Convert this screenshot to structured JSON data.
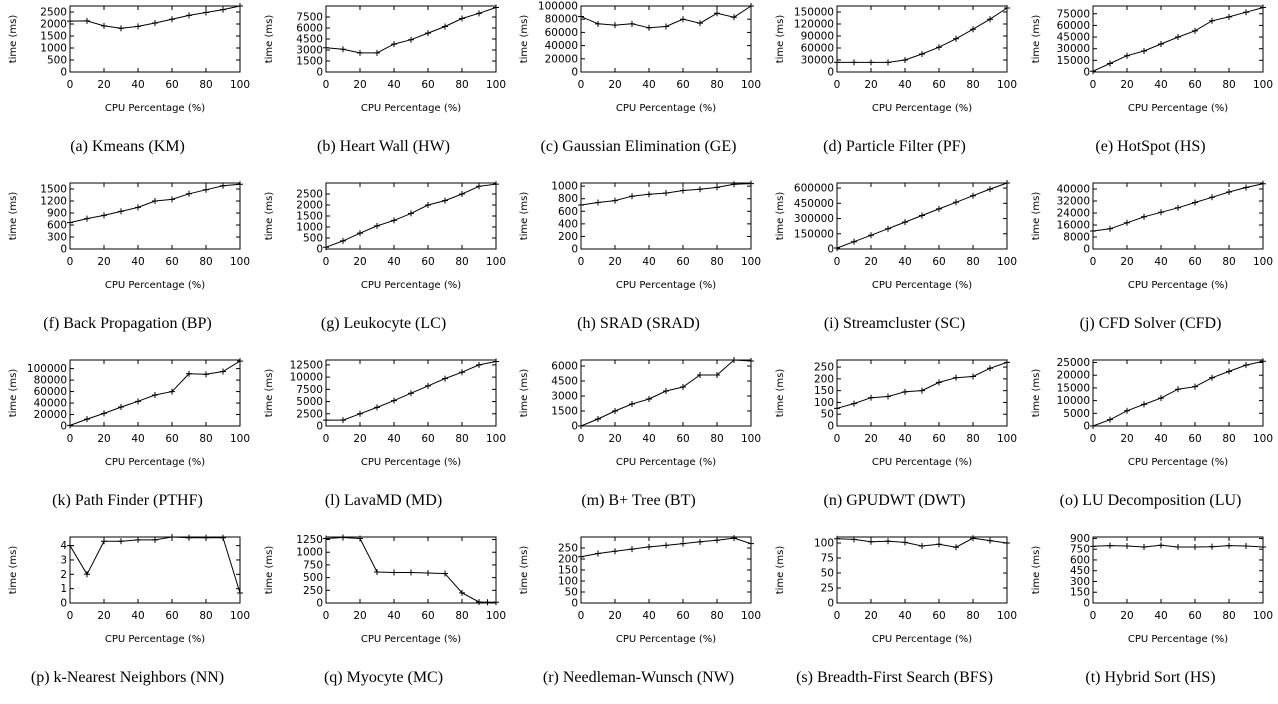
{
  "chart_data": [
    {
      "type": "line",
      "caption": "(a) Kmeans (KM)",
      "xlabel": "CPU Percentage (%)",
      "ylabel": "time (ms)",
      "xlim": [
        0,
        100
      ],
      "ylim": [
        0,
        2750
      ],
      "xticks": [
        0,
        20,
        40,
        60,
        80,
        100
      ],
      "yticks": [
        0,
        500,
        1000,
        1500,
        2000,
        2500
      ],
      "x": [
        0,
        10,
        20,
        30,
        40,
        50,
        60,
        70,
        80,
        90,
        100
      ],
      "values": [
        2120,
        2130,
        1920,
        1820,
        1900,
        2040,
        2200,
        2360,
        2480,
        2600,
        2750
      ]
    },
    {
      "type": "line",
      "caption": "(b) Heart Wall (HW)",
      "xlabel": "CPU Percentage (%)",
      "ylabel": "time (ms)",
      "xlim": [
        0,
        100
      ],
      "ylim": [
        0,
        9000
      ],
      "xticks": [
        0,
        20,
        40,
        60,
        80,
        100
      ],
      "yticks": [
        0,
        1500,
        3000,
        4500,
        6000,
        7500
      ],
      "x": [
        0,
        10,
        20,
        30,
        40,
        50,
        60,
        70,
        80,
        90,
        100
      ],
      "values": [
        3300,
        3100,
        2600,
        2600,
        3800,
        4400,
        5300,
        6200,
        7300,
        8000,
        8800
      ]
    },
    {
      "type": "line",
      "caption": "(c) Gaussian Elimination (GE)",
      "xlabel": "CPU Percentage (%)",
      "ylabel": "time (ms)",
      "xlim": [
        0,
        100
      ],
      "ylim": [
        0,
        100000
      ],
      "xticks": [
        0,
        20,
        40,
        60,
        80,
        100
      ],
      "yticks": [
        0,
        20000,
        40000,
        60000,
        80000,
        100000
      ],
      "x": [
        0,
        10,
        20,
        30,
        40,
        50,
        60,
        70,
        80,
        90,
        100
      ],
      "values": [
        84000,
        73000,
        71000,
        73000,
        67000,
        69000,
        80000,
        74000,
        89000,
        83000,
        100000
      ]
    },
    {
      "type": "line",
      "caption": "(d) Particle Filter (PF)",
      "xlabel": "CPU Percentage (%)",
      "ylabel": "time (ms)",
      "xlim": [
        0,
        100
      ],
      "ylim": [
        0,
        165000
      ],
      "xticks": [
        0,
        20,
        40,
        60,
        80,
        100
      ],
      "yticks": [
        0,
        30000,
        60000,
        90000,
        120000,
        150000
      ],
      "x": [
        0,
        10,
        20,
        30,
        40,
        50,
        60,
        70,
        80,
        90,
        100
      ],
      "values": [
        24000,
        24000,
        24000,
        24000,
        30000,
        45000,
        62000,
        83000,
        107000,
        132000,
        160000
      ]
    },
    {
      "type": "line",
      "caption": "(e) HotSpot (HS)",
      "xlabel": "CPU Percentage (%)",
      "ylabel": "time (ms)",
      "xlim": [
        0,
        100
      ],
      "ylim": [
        0,
        85000
      ],
      "xticks": [
        0,
        20,
        40,
        60,
        80,
        100
      ],
      "yticks": [
        0,
        15000,
        30000,
        45000,
        60000,
        75000
      ],
      "x": [
        0,
        10,
        20,
        30,
        40,
        50,
        60,
        70,
        80,
        90,
        100
      ],
      "values": [
        1000,
        11000,
        21000,
        27000,
        36000,
        45000,
        53000,
        66000,
        71000,
        77000,
        83000
      ]
    },
    {
      "type": "line",
      "caption": "(f) Back Propagation (BP)",
      "xlabel": "CPU Percentage (%)",
      "ylabel": "time (ms)",
      "xlim": [
        0,
        100
      ],
      "ylim": [
        0,
        1650
      ],
      "xticks": [
        0,
        20,
        40,
        60,
        80,
        100
      ],
      "yticks": [
        0,
        300,
        600,
        900,
        1200,
        1500
      ],
      "x": [
        0,
        10,
        20,
        30,
        40,
        50,
        60,
        70,
        80,
        90,
        100
      ],
      "values": [
        660,
        760,
        840,
        940,
        1040,
        1200,
        1240,
        1380,
        1480,
        1580,
        1620
      ]
    },
    {
      "type": "line",
      "caption": "(g) Leukocyte (LC)",
      "xlabel": "CPU Percentage (%)",
      "ylabel": "time (ms)",
      "xlim": [
        0,
        100
      ],
      "ylim": [
        0,
        3000
      ],
      "xticks": [
        0,
        20,
        40,
        60,
        80,
        100
      ],
      "yticks": [
        0,
        500,
        1000,
        1500,
        2000,
        2500
      ],
      "x": [
        0,
        10,
        20,
        30,
        40,
        50,
        60,
        70,
        80,
        90,
        100
      ],
      "values": [
        80,
        370,
        720,
        1050,
        1300,
        1620,
        2000,
        2200,
        2500,
        2850,
        2950
      ]
    },
    {
      "type": "line",
      "caption": "(h) SRAD (SRAD)",
      "xlabel": "CPU Percentage (%)",
      "ylabel": "time (ms)",
      "xlim": [
        0,
        100
      ],
      "ylim": [
        0,
        1050
      ],
      "xticks": [
        0,
        20,
        40,
        60,
        80,
        100
      ],
      "yticks": [
        0,
        200,
        400,
        600,
        800,
        1000
      ],
      "x": [
        0,
        10,
        20,
        30,
        40,
        50,
        60,
        70,
        80,
        90,
        100
      ],
      "values": [
        700,
        740,
        770,
        840,
        870,
        890,
        930,
        950,
        980,
        1030,
        1040
      ]
    },
    {
      "type": "line",
      "caption": "(i) Streamcluster (SC)",
      "xlabel": "CPU Percentage (%)",
      "ylabel": "time (ms)",
      "xlim": [
        0,
        100
      ],
      "ylim": [
        0,
        650000
      ],
      "xticks": [
        0,
        20,
        40,
        60,
        80,
        100
      ],
      "yticks": [
        0,
        150000,
        300000,
        450000,
        600000
      ],
      "x": [
        0,
        10,
        20,
        30,
        40,
        50,
        60,
        70,
        80,
        90,
        100
      ],
      "values": [
        10000,
        72000,
        135000,
        200000,
        265000,
        330000,
        395000,
        460000,
        525000,
        590000,
        650000
      ]
    },
    {
      "type": "line",
      "caption": "(j) CFD Solver (CFD)",
      "xlabel": "CPU Percentage (%)",
      "ylabel": "time (ms)",
      "xlim": [
        0,
        100
      ],
      "ylim": [
        0,
        44000
      ],
      "xticks": [
        0,
        20,
        40,
        60,
        80,
        100
      ],
      "yticks": [
        0,
        8000,
        16000,
        24000,
        32000,
        40000
      ],
      "x": [
        0,
        10,
        20,
        30,
        40,
        50,
        60,
        70,
        80,
        90,
        100
      ],
      "values": [
        12000,
        13500,
        17500,
        21500,
        24500,
        27500,
        31000,
        34500,
        38000,
        41000,
        43500
      ]
    },
    {
      "type": "line",
      "caption": "(k) Path Finder (PTHF)",
      "xlabel": "CPU Percentage (%)",
      "ylabel": "time (ms)",
      "xlim": [
        0,
        100
      ],
      "ylim": [
        0,
        115000
      ],
      "xticks": [
        0,
        20,
        40,
        60,
        80,
        100
      ],
      "yticks": [
        0,
        20000,
        40000,
        60000,
        80000,
        100000
      ],
      "x": [
        0,
        10,
        20,
        30,
        40,
        50,
        60,
        70,
        80,
        90,
        100
      ],
      "values": [
        1000,
        12000,
        22000,
        33000,
        43000,
        54000,
        60000,
        91000,
        90000,
        95000,
        113000
      ]
    },
    {
      "type": "line",
      "caption": "(l) LavaMD (MD)",
      "xlabel": "CPU Percentage (%)",
      "ylabel": "time (ms)",
      "xlim": [
        0,
        100
      ],
      "ylim": [
        0,
        13500
      ],
      "xticks": [
        0,
        20,
        40,
        60,
        80,
        100
      ],
      "yticks": [
        0,
        2500,
        5000,
        7500,
        10000,
        12500
      ],
      "x": [
        0,
        10,
        20,
        30,
        40,
        50,
        60,
        70,
        80,
        90,
        100
      ],
      "values": [
        1200,
        1200,
        2500,
        3800,
        5200,
        6700,
        8200,
        9700,
        11000,
        12500,
        13200
      ]
    },
    {
      "type": "line",
      "caption": "(m) B+ Tree (BT)",
      "xlabel": "CPU Percentage (%)",
      "ylabel": "time (ms)",
      "xlim": [
        0,
        100
      ],
      "ylim": [
        0,
        6600
      ],
      "xticks": [
        0,
        20,
        40,
        60,
        80,
        100
      ],
      "yticks": [
        0,
        1500,
        3000,
        4500,
        6000
      ],
      "x": [
        0,
        10,
        20,
        30,
        40,
        50,
        60,
        70,
        80,
        90,
        100
      ],
      "values": [
        0,
        700,
        1500,
        2200,
        2700,
        3500,
        3900,
        5100,
        5100,
        6600,
        6500
      ]
    },
    {
      "type": "line",
      "caption": "(n) GPUDWT (DWT)",
      "xlabel": "CPU Percentage (%)",
      "ylabel": "time (ms)",
      "xlim": [
        0,
        100
      ],
      "ylim": [
        0,
        280
      ],
      "xticks": [
        0,
        20,
        40,
        60,
        80,
        100
      ],
      "yticks": [
        0,
        50,
        100,
        150,
        200,
        250
      ],
      "x": [
        0,
        10,
        20,
        30,
        40,
        50,
        60,
        70,
        80,
        90,
        100
      ],
      "values": [
        75,
        95,
        120,
        125,
        145,
        150,
        185,
        205,
        210,
        245,
        270
      ]
    },
    {
      "type": "line",
      "caption": "(o) LU Decomposition (LU)",
      "xlabel": "CPU Percentage (%)",
      "ylabel": "time (ms)",
      "xlim": [
        0,
        100
      ],
      "ylim": [
        0,
        26000
      ],
      "xticks": [
        0,
        20,
        40,
        60,
        80,
        100
      ],
      "yticks": [
        0,
        5000,
        10000,
        15000,
        20000,
        25000
      ],
      "x": [
        0,
        10,
        20,
        30,
        40,
        50,
        60,
        70,
        80,
        90,
        100
      ],
      "values": [
        0,
        2500,
        6000,
        8500,
        11000,
        14500,
        15500,
        19000,
        21500,
        24000,
        25500
      ]
    },
    {
      "type": "line",
      "caption": "(p) k-Nearest Neighbors (NN)",
      "xlabel": "CPU Percentage (%)",
      "ylabel": "time (ms)",
      "xlim": [
        0,
        100
      ],
      "ylim": [
        0,
        4.6
      ],
      "xticks": [
        0,
        20,
        40,
        60,
        80,
        100
      ],
      "yticks": [
        0,
        1,
        2,
        3,
        4
      ],
      "x": [
        0,
        10,
        20,
        30,
        40,
        50,
        60,
        70,
        80,
        90,
        100
      ],
      "values": [
        4.0,
        2.0,
        4.3,
        4.3,
        4.4,
        4.4,
        4.6,
        4.55,
        4.55,
        4.55,
        0.7
      ]
    },
    {
      "type": "line",
      "caption": "(q) Myocyte (MC)",
      "xlabel": "CPU Percentage (%)",
      "ylabel": "time (ms)",
      "xlim": [
        0,
        100
      ],
      "ylim": [
        0,
        1300
      ],
      "xticks": [
        0,
        20,
        40,
        60,
        80,
        100
      ],
      "yticks": [
        0,
        250,
        500,
        750,
        1000,
        1250
      ],
      "x": [
        0,
        10,
        20,
        30,
        40,
        50,
        60,
        70,
        80,
        90,
        95,
        100
      ],
      "values": [
        1270,
        1290,
        1270,
        610,
        600,
        600,
        590,
        580,
        200,
        20,
        15,
        15
      ]
    },
    {
      "type": "line",
      "caption": "(r) Needleman-Wunsch (NW)",
      "xlabel": "CPU Percentage (%)",
      "ylabel": "time (ms)",
      "xlim": [
        0,
        100
      ],
      "ylim": [
        0,
        300
      ],
      "xticks": [
        0,
        20,
        40,
        60,
        80,
        100
      ],
      "yticks": [
        0,
        50,
        100,
        150,
        200,
        250
      ],
      "x": [
        0,
        10,
        20,
        30,
        40,
        50,
        60,
        70,
        80,
        90,
        100
      ],
      "values": [
        210,
        225,
        235,
        245,
        255,
        262,
        270,
        278,
        285,
        295,
        270
      ]
    },
    {
      "type": "line",
      "caption": "(s) Breadth-First Search (BFS)",
      "xlabel": "CPU Percentage (%)",
      "ylabel": "time (ms)",
      "xlim": [
        0,
        100
      ],
      "ylim": [
        0,
        110
      ],
      "xticks": [
        0,
        20,
        40,
        60,
        80,
        100
      ],
      "yticks": [
        0,
        25,
        50,
        75,
        100
      ],
      "x": [
        0,
        10,
        20,
        30,
        40,
        50,
        60,
        70,
        80,
        90,
        100
      ],
      "values": [
        107,
        106,
        102,
        103,
        101,
        95,
        98,
        93,
        108,
        104,
        100
      ]
    },
    {
      "type": "line",
      "caption": "(t) Hybrid Sort (HS)",
      "xlabel": "CPU Percentage (%)",
      "ylabel": "time (ms)",
      "xlim": [
        0,
        100
      ],
      "ylim": [
        0,
        920
      ],
      "xticks": [
        0,
        20,
        40,
        60,
        80,
        100
      ],
      "yticks": [
        0,
        150,
        300,
        450,
        600,
        750,
        900
      ],
      "x": [
        0,
        10,
        20,
        30,
        40,
        50,
        60,
        70,
        80,
        90,
        100
      ],
      "values": [
        790,
        800,
        795,
        780,
        805,
        780,
        780,
        785,
        800,
        795,
        780
      ]
    }
  ]
}
